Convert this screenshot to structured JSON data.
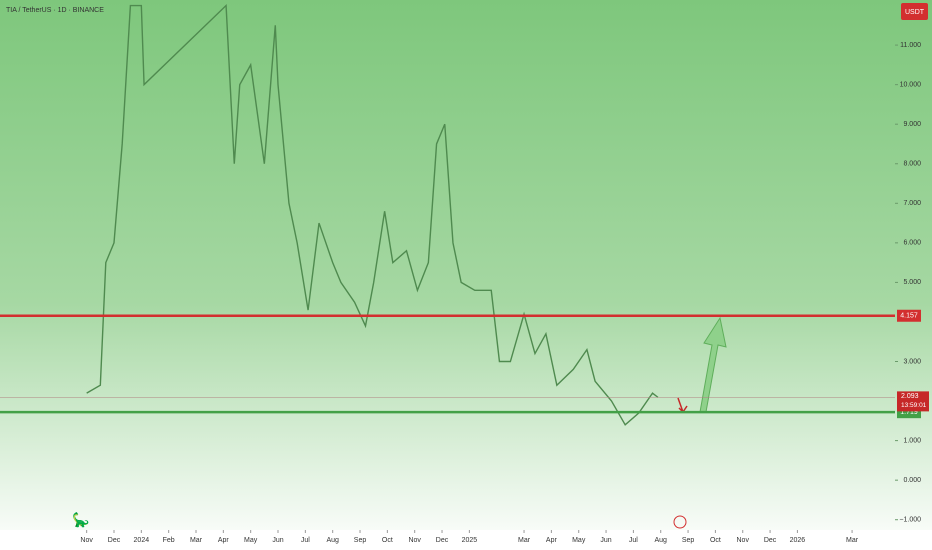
{
  "chart_data": {
    "type": "line",
    "title": "TIA / TetherUS · 1D · BINANCE",
    "currency": "USDT",
    "color": "#4f8a4f",
    "x": [
      0,
      0.5,
      0.7,
      1,
      1.3,
      1.6,
      2,
      2.1,
      5.1,
      5.4,
      5.6,
      6,
      6.3,
      6.5,
      6.9,
      7,
      7.4,
      7.7,
      8.1,
      8.5,
      9,
      9.3,
      9.8,
      10.2,
      10.5,
      10.9,
      11.2,
      11.7,
      12.1,
      12.5,
      12.8,
      13.1,
      13.4,
      13.7,
      14.2,
      14.8,
      15.1,
      15.5,
      16,
      16.4,
      16.8,
      17.2,
      17.8,
      18.3,
      18.6,
      19.2,
      19.7,
      20.2,
      20.7,
      20.9
    ],
    "values": [
      2.2,
      2.4,
      5.5,
      6.0,
      8.5,
      12.0,
      12.0,
      10.0,
      12.0,
      8.0,
      10.0,
      10.5,
      9.0,
      8.0,
      11.5,
      10.0,
      7.0,
      6.0,
      4.3,
      6.5,
      5.5,
      5.0,
      4.5,
      3.9,
      5.0,
      6.8,
      5.5,
      5.8,
      4.8,
      5.5,
      8.5,
      9.0,
      6.0,
      5.0,
      4.8,
      4.8,
      3.0,
      3.0,
      4.2,
      3.2,
      3.7,
      2.4,
      2.8,
      3.3,
      2.5,
      2.0,
      1.4,
      1.7,
      2.2,
      2.093
    ],
    "xlim": [
      -3.17,
      29.57
    ],
    "xticks": [
      {
        "value": 0,
        "label": "Nov"
      },
      {
        "value": 1,
        "label": "Dec"
      },
      {
        "value": 2,
        "label": "2024"
      },
      {
        "value": 3,
        "label": "Feb"
      },
      {
        "value": 4,
        "label": "Mar"
      },
      {
        "value": 5,
        "label": "Apr"
      },
      {
        "value": 6,
        "label": "May"
      },
      {
        "value": 7,
        "label": "Jun"
      },
      {
        "value": 8,
        "label": "Jul"
      },
      {
        "value": 9,
        "label": "Aug"
      },
      {
        "value": 10,
        "label": "Sep"
      },
      {
        "value": 11,
        "label": "Oct"
      },
      {
        "value": 12,
        "label": "Nov"
      },
      {
        "value": 13,
        "label": "Dec"
      },
      {
        "value": 14,
        "label": "2025"
      },
      {
        "value": 16,
        "label": "Mar"
      },
      {
        "value": 17,
        "label": "Apr"
      },
      {
        "value": 18,
        "label": "May"
      },
      {
        "value": 19,
        "label": "Jun"
      },
      {
        "value": 20,
        "label": "Jul"
      },
      {
        "value": 21,
        "label": "Aug"
      },
      {
        "value": 22,
        "label": "Sep"
      },
      {
        "value": 23,
        "label": "Oct"
      },
      {
        "value": 24,
        "label": "Nov"
      },
      {
        "value": 25,
        "label": "Dec"
      },
      {
        "value": 26,
        "label": "2026"
      },
      {
        "value": 28,
        "label": "Mar"
      }
    ],
    "ylim": [
      -1.26,
      12.14
    ],
    "yticks": [
      {
        "value": -1,
        "label": "−1.000"
      },
      {
        "value": 0,
        "label": "0.000"
      },
      {
        "value": 1,
        "label": "1.000"
      },
      {
        "value": 3,
        "label": "3.000"
      },
      {
        "value": 5,
        "label": "5.000"
      },
      {
        "value": 6,
        "label": "6.000"
      },
      {
        "value": 7,
        "label": "7.000"
      },
      {
        "value": 8,
        "label": "8.000"
      },
      {
        "value": 9,
        "label": "9.000"
      },
      {
        "value": 10,
        "label": "10.000"
      },
      {
        "value": 11,
        "label": "11.000"
      }
    ],
    "levels": [
      {
        "value": 4.157,
        "color": "#d32f2f"
      },
      {
        "value": 1.719,
        "color": "#43a047"
      }
    ],
    "last_price": {
      "value": 2.093,
      "countdown": "13:59:01",
      "color": "#c62828"
    }
  }
}
